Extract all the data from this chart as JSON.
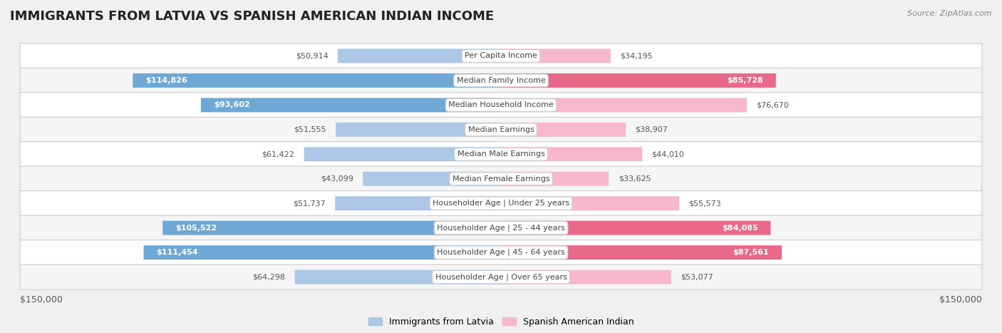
{
  "title": "IMMIGRANTS FROM LATVIA VS SPANISH AMERICAN INDIAN INCOME",
  "source": "Source: ZipAtlas.com",
  "categories": [
    "Per Capita Income",
    "Median Family Income",
    "Median Household Income",
    "Median Earnings",
    "Median Male Earnings",
    "Median Female Earnings",
    "Householder Age | Under 25 years",
    "Householder Age | 25 - 44 years",
    "Householder Age | 45 - 64 years",
    "Householder Age | Over 65 years"
  ],
  "latvia_values": [
    50914,
    114826,
    93602,
    51555,
    61422,
    43099,
    51737,
    105522,
    111454,
    64298
  ],
  "spanish_values": [
    34195,
    85728,
    76670,
    38907,
    44010,
    33625,
    55573,
    84085,
    87561,
    53077
  ],
  "latvia_labels": [
    "$50,914",
    "$114,826",
    "$93,602",
    "$51,555",
    "$61,422",
    "$43,099",
    "$51,737",
    "$105,522",
    "$111,454",
    "$64,298"
  ],
  "spanish_labels": [
    "$34,195",
    "$85,728",
    "$76,670",
    "$38,907",
    "$44,010",
    "$33,625",
    "$55,573",
    "$84,085",
    "$87,561",
    "$53,077"
  ],
  "latvia_color_light": "#adc8e6",
  "latvia_color_dark": "#6fa8d5",
  "spanish_color_light": "#f7b8cc",
  "spanish_color_dark": "#e8698a",
  "inside_threshold": 80000,
  "max_value": 150000,
  "bar_height": 0.58,
  "bg_color": "#f0f0f0",
  "row_colors": [
    "#ffffff",
    "#f5f5f5"
  ],
  "legend_latvia": "Immigrants from Latvia",
  "legend_spanish": "Spanish American Indian",
  "xlabel_left": "$150,000",
  "xlabel_right": "$150,000",
  "title_fontsize": 13,
  "label_fontsize": 8,
  "value_fontsize": 8,
  "axis_fontsize": 9
}
